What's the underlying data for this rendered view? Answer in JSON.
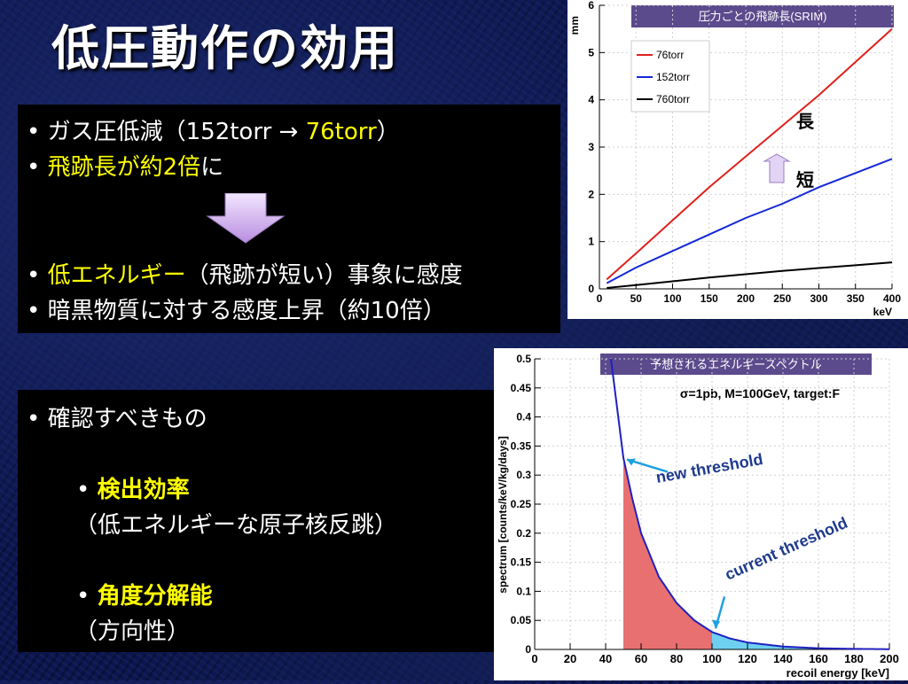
{
  "slide": {
    "title": "低圧動作の効用"
  },
  "box1": {
    "l1_a": "ガス圧低減（152torr → ",
    "l1_b": "76torr",
    "l1_c": "）",
    "l2_a": "飛跡長が約2倍",
    "l2_b": "に",
    "l3_a": "低エネルギー",
    "l3_b": "（飛跡が短い）事象に感度",
    "l4": "暗黒物質に対する感度上昇（約10倍）"
  },
  "box2": {
    "l1": "確認すべきもの",
    "l2": "検出効率",
    "l3": "（低エネルギーな原子核反跳）",
    "l4": "角度分解能",
    "l5": "（方向性）"
  },
  "bullet": "•",
  "chart_data": [
    {
      "type": "line",
      "title": "圧力ごとの飛跡長(SRIM)",
      "xlabel": "keV",
      "ylabel": "mm",
      "xlim": [
        0,
        400
      ],
      "ylim": [
        0,
        6
      ],
      "xticks": [
        "0",
        "50",
        "100",
        "150",
        "200",
        "250",
        "300",
        "350",
        "400"
      ],
      "yticks": [
        "0",
        "1",
        "2",
        "3",
        "4",
        "5",
        "6"
      ],
      "legend_position": "top-left",
      "grid": true,
      "series": [
        {
          "name": "76torr",
          "color": "#e0201c",
          "x": [
            10,
            50,
            100,
            150,
            200,
            250,
            300,
            350,
            400
          ],
          "y": [
            0.2,
            0.75,
            1.45,
            2.15,
            2.8,
            3.45,
            4.1,
            4.8,
            5.5
          ]
        },
        {
          "name": "152torr",
          "color": "#1428d8",
          "x": [
            10,
            50,
            100,
            150,
            200,
            250,
            300,
            350,
            400
          ],
          "y": [
            0.12,
            0.45,
            0.8,
            1.15,
            1.5,
            1.8,
            2.15,
            2.45,
            2.75
          ]
        },
        {
          "name": "760torr",
          "color": "#000000",
          "x": [
            10,
            50,
            100,
            150,
            200,
            250,
            300,
            350,
            400
          ],
          "y": [
            0.02,
            0.08,
            0.16,
            0.24,
            0.31,
            0.38,
            0.44,
            0.5,
            0.56
          ]
        }
      ],
      "annotations": {
        "long": "長",
        "short": "短"
      }
    },
    {
      "type": "area",
      "title": "予想されるエネルギースペクトル",
      "subtitle": "σ=1pb, M=100GeV, target:F",
      "xlabel": "recoil energy [keV]",
      "ylabel": "spectrum [counts/keV/kg/days]",
      "xlim": [
        0,
        200
      ],
      "ylim": [
        0,
        0.5
      ],
      "xticks": [
        "0",
        "20",
        "40",
        "60",
        "80",
        "100",
        "120",
        "140",
        "160",
        "180",
        "200"
      ],
      "yticks": [
        "0",
        "0.05",
        "0.1",
        "0.15",
        "0.2",
        "0.25",
        "0.3",
        "0.35",
        "0.4",
        "0.45",
        "0.5"
      ],
      "grid": true,
      "curve_color": "#2020c0",
      "series": [
        {
          "x": [
            43,
            50,
            55,
            60,
            70,
            80,
            90,
            100,
            110,
            120,
            140,
            160,
            180,
            200
          ],
          "y": [
            0.5,
            0.33,
            0.26,
            0.2,
            0.125,
            0.08,
            0.05,
            0.03,
            0.019,
            0.012,
            0.005,
            0.002,
            0.001,
            0.0004
          ]
        }
      ],
      "shaded_regions": [
        {
          "from": 50,
          "to": 100,
          "color": "#e87070"
        },
        {
          "from": 100,
          "to": 200,
          "color": "#6ed0f0"
        }
      ],
      "annotations": {
        "new_threshold": "new threshold",
        "current_threshold": "current threshold",
        "new_threshold_x": 50,
        "current_threshold_x": 100
      }
    }
  ]
}
